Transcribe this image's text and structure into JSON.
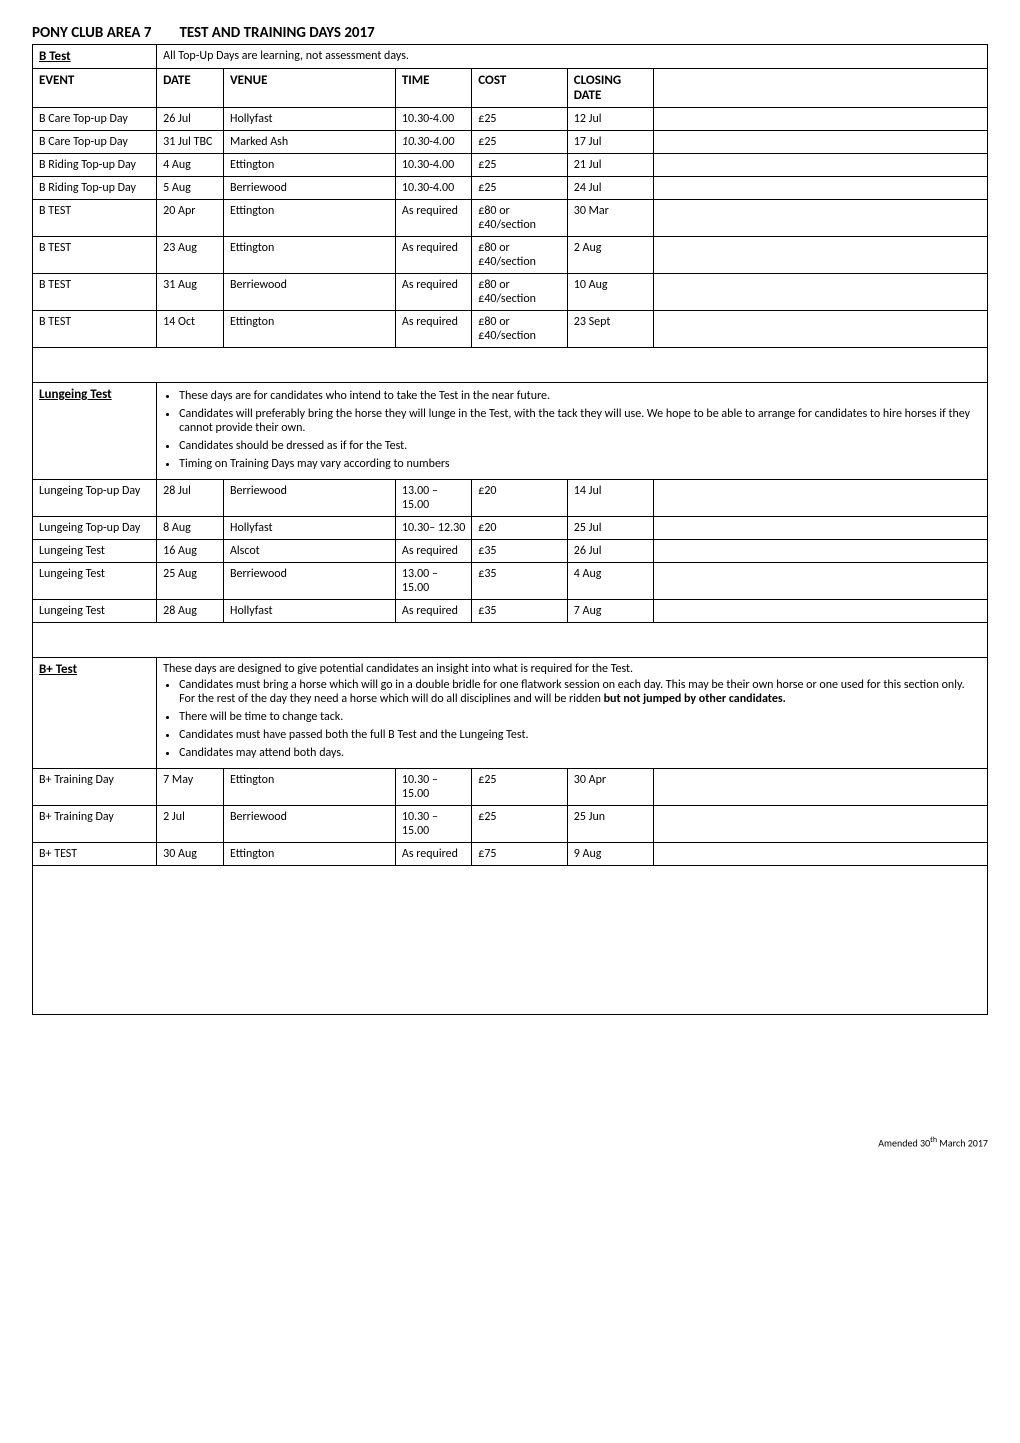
{
  "header": {
    "area": "PONY CLUB AREA 7",
    "title": "TEST AND TRAINING DAYS 2017"
  },
  "columns": {
    "event": "EVENT",
    "date": "DATE",
    "venue": "VENUE",
    "time": "TIME",
    "cost": "COST",
    "closing": "CLOSING DATE"
  },
  "b_test": {
    "label": "B Test",
    "note": "All Top-Up Days are learning, not assessment days.",
    "rows": [
      {
        "event": "B Care Top-up Day",
        "date": "26 Jul",
        "venue": "Hollyfast",
        "time": "10.30-4.00",
        "cost": "£25",
        "closing": "12 Jul"
      },
      {
        "event": "B Care Top-up Day",
        "date": "31 Jul TBC",
        "venue": "Marked Ash",
        "time": "10.30-4.00",
        "time_italic": true,
        "cost": "£25",
        "closing": "17 Jul"
      },
      {
        "event": "B Riding Top-up Day",
        "date": "4 Aug",
        "venue": "Ettington",
        "time": "10.30-4.00",
        "cost": "£25",
        "closing": "21 Jul"
      },
      {
        "event": "B Riding Top-up Day",
        "date": "5 Aug",
        "venue": "Berriewood",
        "time": "10.30-4.00",
        "cost": "£25",
        "closing": "24 Jul"
      },
      {
        "event": "B TEST",
        "date": "20 Apr",
        "venue": "Ettington",
        "time": "As required",
        "cost": "£80 or £40/section",
        "closing": "30 Mar"
      },
      {
        "event": "B TEST",
        "date": "23 Aug",
        "venue": "Ettington",
        "time": "As required",
        "cost": "£80 or £40/section",
        "closing": "2 Aug"
      },
      {
        "event": "B TEST",
        "date": "31 Aug",
        "venue": "Berriewood",
        "time": "As required",
        "cost": "£80 or £40/section",
        "closing": "10 Aug"
      },
      {
        "event": "B TEST",
        "date": "14 Oct",
        "venue": "Ettington",
        "time": "As required",
        "cost": "£80 or £40/section",
        "closing": "23 Sept"
      }
    ]
  },
  "lungeing": {
    "label": "Lungeing Test",
    "bullets": [
      "These days are for candidates who intend to take the Test in the near future.",
      "Candidates will preferably bring the horse they will lunge in the Test, with the tack they will use.  We hope to be able to arrange for candidates to hire horses if they cannot provide their own.",
      "Candidates should be dressed as if for the Test.",
      "Timing on Training Days may vary according to numbers"
    ],
    "rows": [
      {
        "event": "Lungeing Top-up Day",
        "date": "28 Jul",
        "venue": "Berriewood",
        "time": "13.00 – 15.00",
        "cost": "£20",
        "closing": "14 Jul"
      },
      {
        "event": "Lungeing Top-up Day",
        "date": "8 Aug",
        "venue": "Hollyfast",
        "time": "10.30– 12.30",
        "cost": "£20",
        "closing": "25 Jul"
      },
      {
        "event": "Lungeing Test",
        "date": "16 Aug",
        "venue": "Alscot",
        "time": "As required",
        "cost": "£35",
        "closing": "26 Jul"
      },
      {
        "event": "Lungeing Test",
        "date": "25 Aug",
        "venue": "Berriewood",
        "time": "13.00 – 15.00",
        "cost": "£35",
        "closing": "4 Aug"
      },
      {
        "event": "Lungeing Test",
        "date": "28 Aug",
        "venue": "Hollyfast",
        "time": "As required",
        "cost": "£35",
        "closing": "7 Aug"
      }
    ]
  },
  "b_plus": {
    "label": "B+ Test",
    "intro": "These days are designed to give potential candidates an insight into what is required for the Test.",
    "bullets": [
      "Candidates must bring a horse which will go in a double bridle for one flatwork session on each day. This may be their own horse or one used for this section only.  For the rest of the day they need a horse which will do all disciplines and will be ridden <b>but not jumped by other candidates.</b>",
      "There will be time to change tack.",
      "Candidates must have passed both the full B Test and the Lungeing Test.",
      "Candidates may attend both days."
    ],
    "rows": [
      {
        "event": "B+ Training Day",
        "date": "7 May",
        "venue": "Ettington",
        "time": "10.30 – 15.00",
        "cost": "£25",
        "closing": "30 Apr"
      },
      {
        "event": "B+ Training Day",
        "date": "2 Jul",
        "venue": "Berriewood",
        "time": "10.30 – 15.00",
        "cost": "£25",
        "closing": "25 Jun"
      },
      {
        "event": "B+ TEST",
        "date": "30 Aug",
        "venue": "Ettington",
        "time": "As required",
        "cost": "£75",
        "closing": "9 Aug"
      }
    ]
  },
  "footer": "Amended 30th March 2017"
}
